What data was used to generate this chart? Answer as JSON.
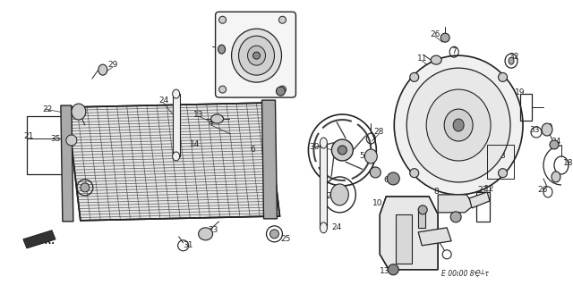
{
  "bg_color": "#ffffff",
  "line_color": "#222222",
  "fig_width": 6.4,
  "fig_height": 3.19,
  "dpi": 100
}
